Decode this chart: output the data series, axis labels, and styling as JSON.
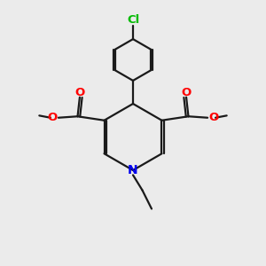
{
  "background_color": "#ebebeb",
  "bond_color": "#1a1a1a",
  "oxygen_color": "#ff0000",
  "nitrogen_color": "#0000ee",
  "chlorine_color": "#00bb00",
  "figsize": [
    3.0,
    3.0
  ],
  "dpi": 100,
  "xlim": [
    0,
    10
  ],
  "ylim": [
    0,
    10
  ]
}
